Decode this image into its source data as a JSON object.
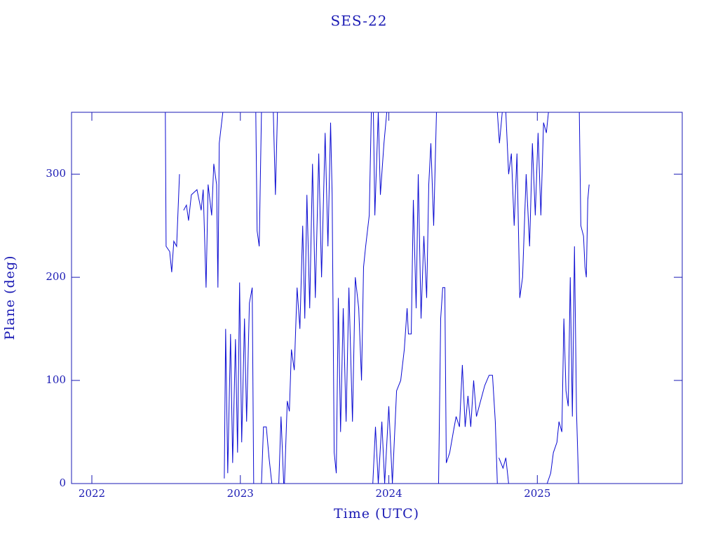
{
  "chart_data": {
    "type": "line",
    "title": "SES-22",
    "x_label": "Time (UTC)",
    "y_label": "Plane (deg)",
    "color": "#0a0ad2",
    "xlim": [
      2021.863,
      2025.976
    ],
    "ylim": [
      0,
      360
    ],
    "xticks": [
      2022,
      2023,
      2024,
      2025
    ],
    "yticks": [
      0,
      100,
      200,
      300
    ],
    "x": [
      2022.495,
      2022.5,
      2022.524,
      2022.538,
      2022.552,
      2022.571,
      2022.59,
      null,
      2022.618,
      2022.637,
      2022.651,
      2022.67,
      2022.708,
      2022.736,
      2022.75,
      2022.769,
      2022.783,
      2022.807,
      2022.821,
      2022.84,
      2022.849,
      2022.858,
      2022.882,
      null,
      2022.892,
      2022.901,
      2022.915,
      2022.934,
      2022.948,
      2022.967,
      2022.981,
      2022.995,
      2023.009,
      2023.028,
      2023.042,
      2023.061,
      2023.08,
      2023.09,
      null,
      2023.104,
      2023.113,
      2023.127,
      2023.142,
      null,
      2023.142,
      2023.156,
      2023.175,
      2023.193,
      2023.212,
      null,
      2023.222,
      2023.236,
      2023.25,
      null,
      2023.259,
      2023.274,
      2023.292,
      null,
      2023.297,
      2023.316,
      2023.33,
      2023.344,
      2023.363,
      2023.382,
      2023.401,
      2023.42,
      2023.434,
      2023.448,
      2023.467,
      2023.486,
      2023.505,
      2023.528,
      2023.547,
      2023.571,
      2023.59,
      2023.608,
      2023.618,
      2023.632,
      2023.646,
      2023.66,
      2023.675,
      2023.693,
      2023.712,
      2023.731,
      2023.755,
      2023.774,
      2023.797,
      2023.816,
      2023.83,
      2023.844,
      2023.868,
      2023.882,
      null,
      2023.896,
      2023.906,
      2023.929,
      2023.943,
      2023.967,
      2023.986,
      null,
      2023.892,
      2023.91,
      2023.929,
      2023.953,
      2023.972,
      2024.0,
      2024.024,
      2024.052,
      2024.08,
      2024.104,
      2024.123,
      2024.132,
      2024.151,
      2024.165,
      2024.184,
      2024.198,
      2024.217,
      2024.236,
      2024.255,
      2024.269,
      2024.283,
      2024.302,
      2024.321,
      null,
      2024.335,
      2024.349,
      2024.363,
      2024.377,
      2024.387,
      2024.41,
      2024.434,
      2024.453,
      2024.476,
      2024.495,
      2024.514,
      2024.533,
      2024.552,
      2024.571,
      2024.59,
      2024.618,
      2024.646,
      2024.675,
      2024.698,
      2024.717,
      2024.731,
      null,
      2024.731,
      2024.745,
      2024.764,
      null,
      2024.741,
      2024.769,
      2024.788,
      2024.807,
      null,
      2024.788,
      2024.807,
      2024.825,
      2024.844,
      2024.863,
      2024.882,
      2024.901,
      2024.925,
      2024.948,
      2024.967,
      2024.986,
      2025.005,
      2025.024,
      2025.042,
      2025.061,
      2025.075,
      null,
      2025.066,
      2025.09,
      2025.108,
      2025.132,
      2025.146,
      2025.165,
      2025.179,
      2025.193,
      2025.208,
      2025.222,
      2025.236,
      2025.25,
      2025.264,
      2025.278,
      null,
      2025.283,
      2025.293,
      2025.311,
      2025.321,
      2025.33,
      2025.34,
      2025.349
    ],
    "values": [
      360,
      230,
      225,
      205,
      235,
      230,
      300,
      null,
      265,
      270,
      255,
      280,
      285,
      265,
      285,
      190,
      290,
      260,
      310,
      290,
      190,
      330,
      360,
      null,
      5,
      150,
      10,
      145,
      20,
      140,
      30,
      195,
      40,
      160,
      60,
      175,
      190,
      0,
      null,
      360,
      245,
      230,
      360,
      null,
      0,
      55,
      55,
      25,
      0,
      null,
      360,
      280,
      360,
      null,
      0,
      65,
      0,
      null,
      0,
      80,
      70,
      130,
      110,
      190,
      150,
      250,
      160,
      280,
      170,
      310,
      180,
      320,
      200,
      340,
      230,
      350,
      280,
      30,
      10,
      180,
      50,
      170,
      60,
      190,
      60,
      200,
      170,
      100,
      210,
      230,
      260,
      360,
      null,
      360,
      260,
      360,
      280,
      330,
      360,
      null,
      0,
      55,
      0,
      60,
      0,
      75,
      0,
      90,
      100,
      130,
      170,
      145,
      145,
      275,
      170,
      300,
      160,
      240,
      180,
      290,
      330,
      250,
      360,
      null,
      0,
      160,
      190,
      190,
      20,
      30,
      50,
      65,
      55,
      115,
      55,
      85,
      55,
      100,
      65,
      80,
      95,
      105,
      105,
      60,
      0,
      null,
      360,
      330,
      360,
      null,
      25,
      15,
      25,
      0,
      null,
      360,
      300,
      320,
      250,
      320,
      180,
      200,
      300,
      230,
      330,
      260,
      340,
      260,
      350,
      340,
      360,
      null,
      0,
      10,
      30,
      40,
      60,
      50,
      160,
      90,
      75,
      200,
      65,
      230,
      70,
      0,
      null,
      360,
      250,
      240,
      210,
      200,
      275,
      290
    ]
  }
}
